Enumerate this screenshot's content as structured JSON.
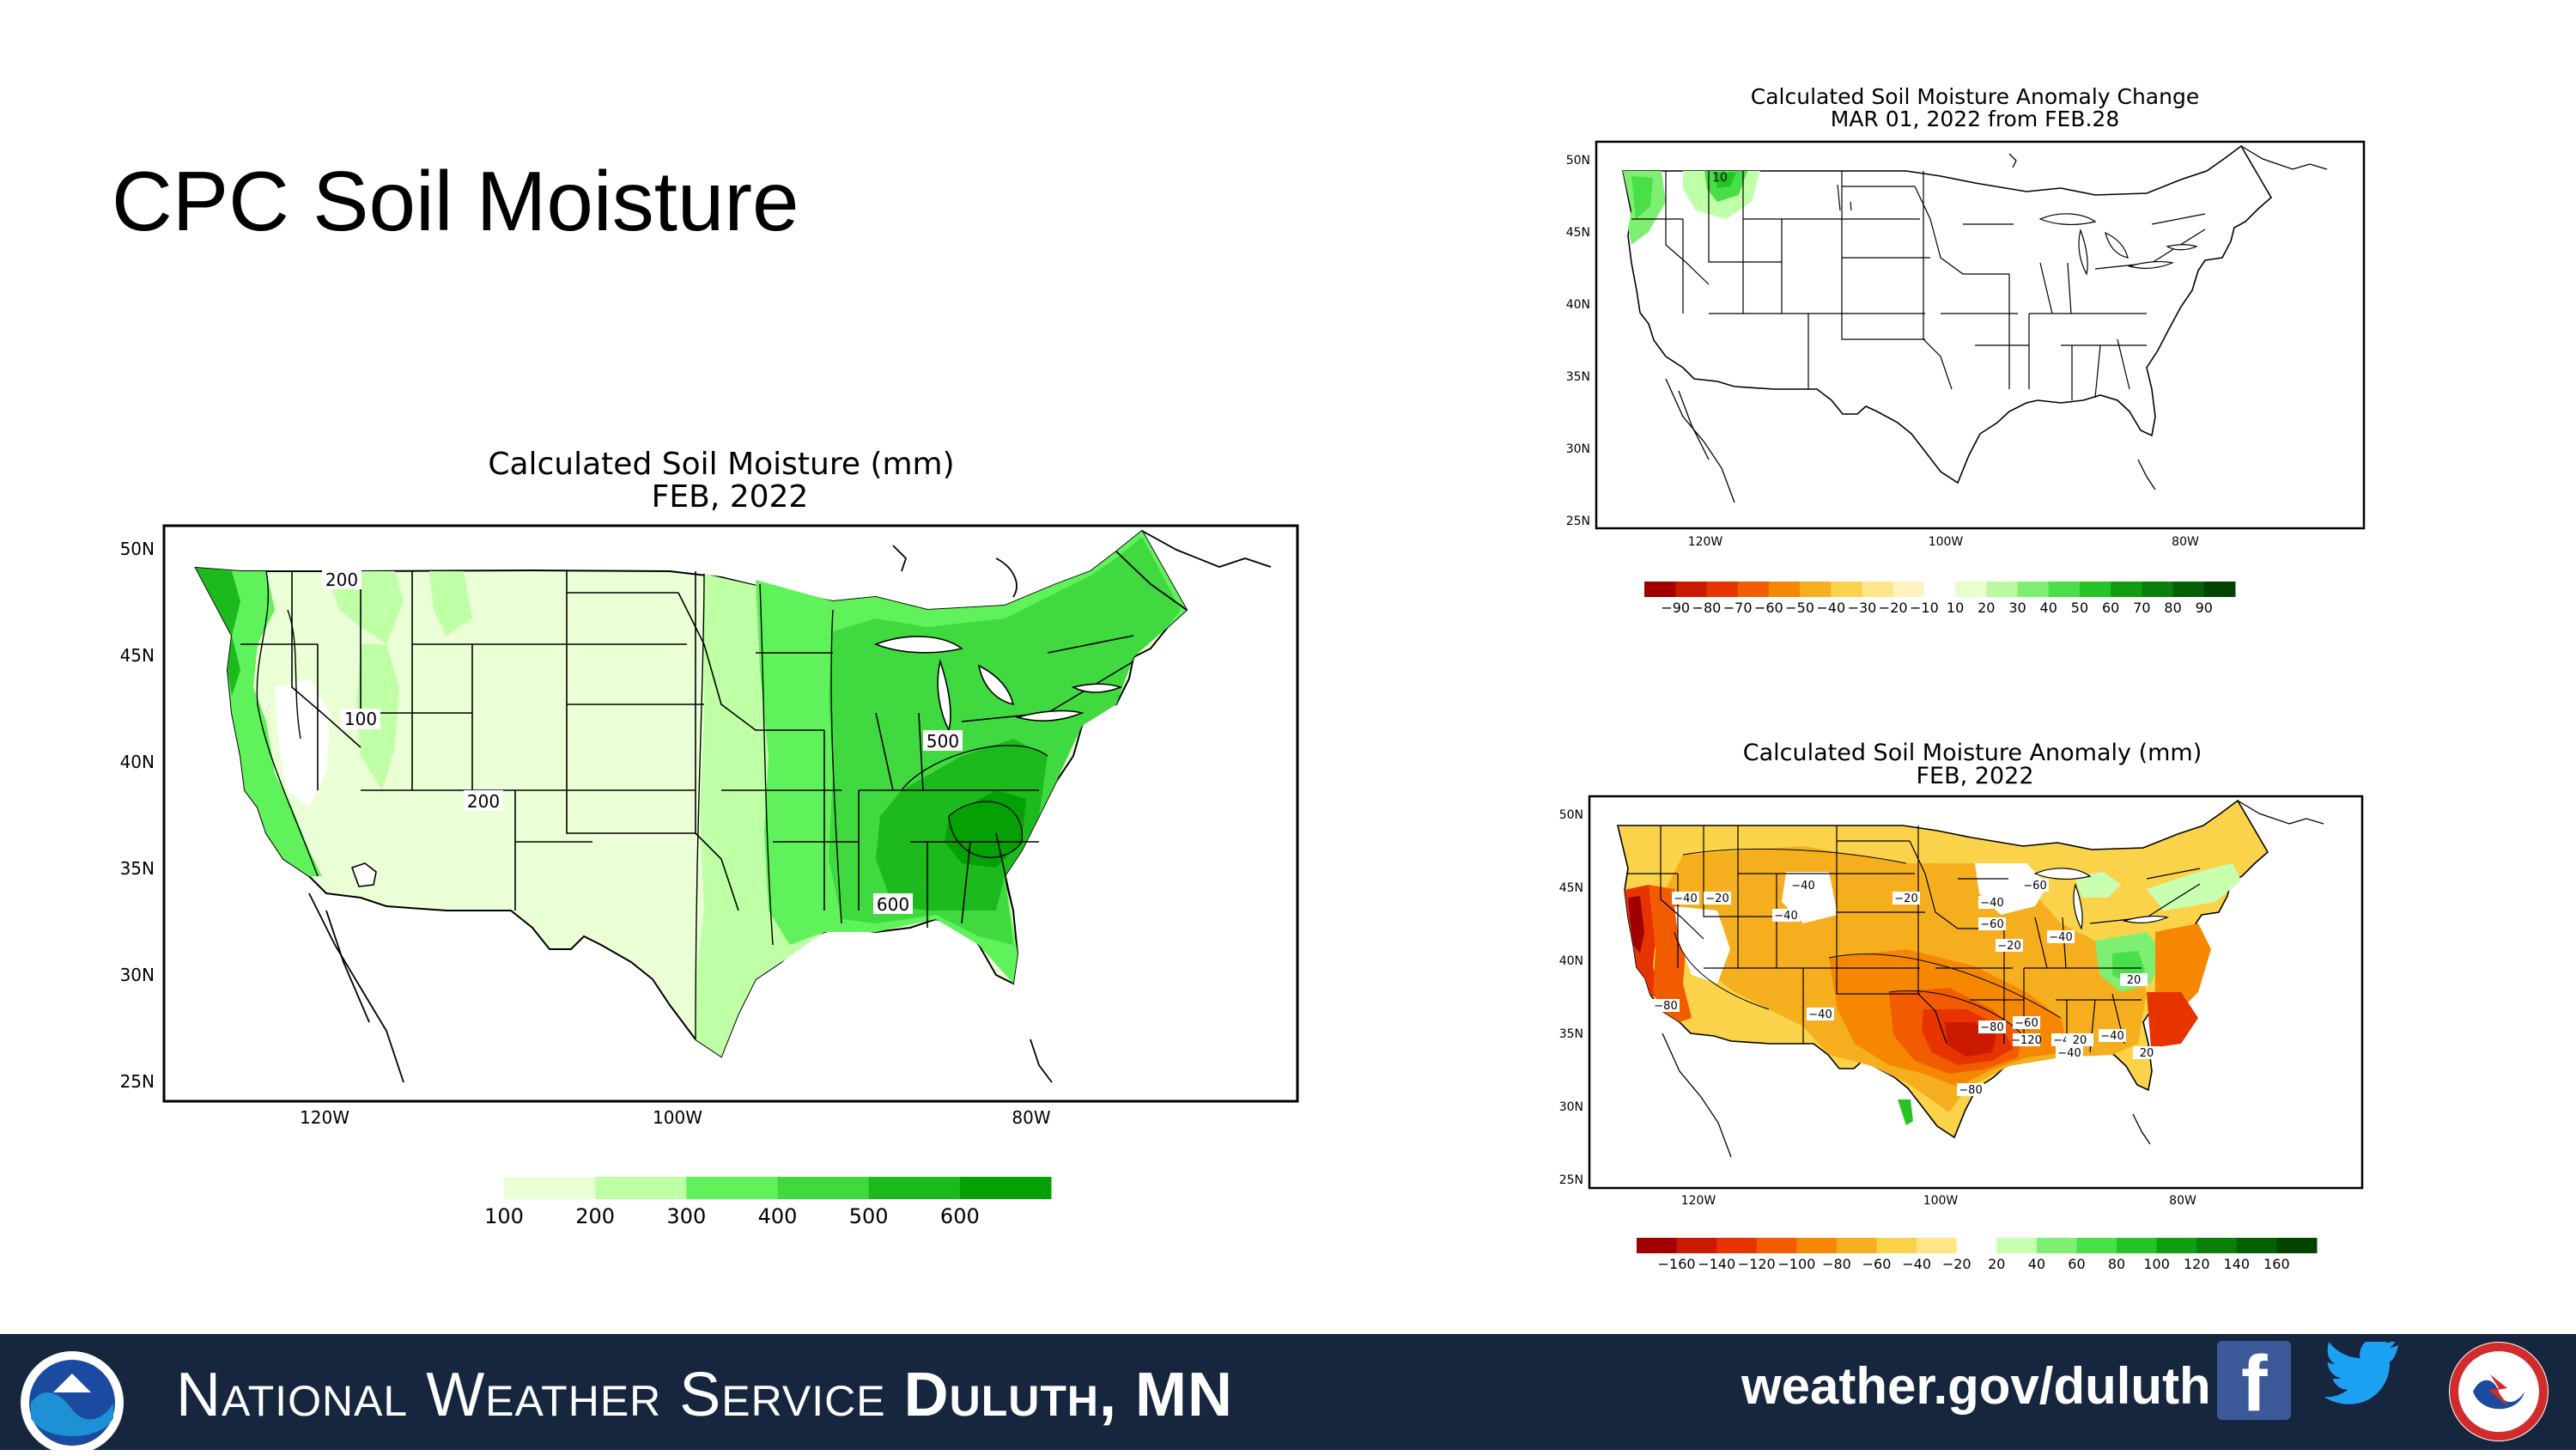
{
  "slide": {
    "title": "CPC Soil Moisture"
  },
  "maps": {
    "main": {
      "title": "Calculated Soil Moisture (mm)",
      "subtitle": "FEB, 2022",
      "lat_labels": [
        "50N",
        "45N",
        "40N",
        "35N",
        "30N",
        "25N"
      ],
      "lon_labels": [
        "120W",
        "100W",
        "80W"
      ],
      "contour_labels": [
        "200",
        "100",
        "200",
        "500",
        "600"
      ],
      "legend_values": [
        "100",
        "200",
        "300",
        "400",
        "500",
        "600"
      ],
      "legend_colors": [
        "#eaffd6",
        "#bfffa6",
        "#60f25a",
        "#40d940",
        "#1dba1d",
        "#04a004"
      ]
    },
    "change": {
      "title": "Calculated Soil Moisture Anomaly Change",
      "subtitle": "MAR 01, 2022 from FEB.28",
      "lat_labels": [
        "50N",
        "45N",
        "40N",
        "35N",
        "30N",
        "25N"
      ],
      "lon_labels": [
        "120W",
        "100W",
        "80W"
      ],
      "contour_labels": [
        "10"
      ],
      "legend_values": [
        "−90",
        "−80",
        "−70",
        "−60",
        "−50",
        "−40",
        "−30",
        "−20",
        "−10",
        "10",
        "20",
        "30",
        "40",
        "50",
        "60",
        "70",
        "80",
        "90"
      ],
      "legend_colors": [
        "#a10000",
        "#cc1a00",
        "#e63300",
        "#f25c00",
        "#f58800",
        "#f5ae1e",
        "#fad34a",
        "#fde688",
        "#fff4c0",
        "#ffffff",
        "#e7ffcd",
        "#baf9a0",
        "#7fef73",
        "#48df48",
        "#23c423",
        "#0f9e0f",
        "#0a800a",
        "#046004",
        "#014401"
      ]
    },
    "anomaly": {
      "title": "Calculated Soil Moisture Anomaly (mm)",
      "subtitle": "FEB, 2022",
      "lat_labels": [
        "50N",
        "45N",
        "40N",
        "35N",
        "30N",
        "25N"
      ],
      "lon_labels": [
        "120W",
        "100W",
        "80W"
      ],
      "contour_labels": [
        "−40",
        "−20",
        "−40",
        "−40",
        "−20",
        "−40",
        "−60",
        "−20",
        "−60",
        "−40",
        "−80",
        "−40",
        "−60",
        "−80",
        "−120",
        "−40",
        "20",
        "−80",
        "20",
        "−40",
        "−40",
        "20"
      ],
      "legend_values": [
        "−160",
        "−140",
        "−120",
        "−100",
        "−80",
        "−60",
        "−40",
        "−20",
        "20",
        "40",
        "60",
        "80",
        "100",
        "120",
        "140",
        "160"
      ],
      "legend_colors": [
        "#a10000",
        "#cc1a00",
        "#e63300",
        "#f25c00",
        "#f58800",
        "#f5ae1e",
        "#fad34a",
        "#fde688",
        "#ffffff",
        "#c9ffb0",
        "#7fef73",
        "#48df48",
        "#23c423",
        "#0f9e0f",
        "#0a800a",
        "#046004",
        "#014401"
      ]
    }
  },
  "footer": {
    "org_prefix": "National Weather Service",
    "office": "Duluth, MN",
    "website": "weather.gov/duluth",
    "facebook_glyph": "f",
    "colors": {
      "bar": "#17263f",
      "facebook": "#3b5998",
      "twitter": "#1da1f2"
    }
  }
}
